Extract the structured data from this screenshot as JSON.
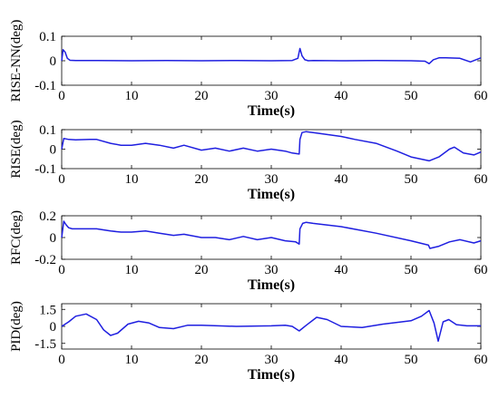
{
  "chart_data": [
    {
      "type": "line",
      "ylabel": "RISE-NN(deg)",
      "xlabel": "Time(s)",
      "xlim": [
        0,
        60
      ],
      "ylim": [
        -0.1,
        0.1
      ],
      "xticks": [
        0,
        10,
        20,
        30,
        40,
        50,
        60
      ],
      "yticks": [
        "0.1",
        "0",
        "-0.1"
      ],
      "ytick_values": [
        0.1,
        0,
        -0.1
      ],
      "grid": false,
      "line_color": "#1f1fe0",
      "series": [
        {
          "x": [
            0,
            0.2,
            0.5,
            0.8,
            1.2,
            2,
            5,
            10,
            15,
            20,
            25,
            30,
            33,
            33.8,
            34.1,
            34.4,
            34.8,
            35.3,
            36,
            40,
            45,
            50,
            52,
            52.6,
            53.2,
            54,
            55,
            57,
            58.5,
            60
          ],
          "y": [
            0.0,
            0.045,
            0.035,
            0.01,
            0.002,
            0.001,
            0.001,
            0.0,
            0.001,
            0.0,
            0.001,
            0.0,
            0.001,
            0.01,
            0.05,
            0.02,
            0.004,
            0.0,
            0.001,
            0.0,
            0.001,
            0.0,
            -0.002,
            -0.012,
            0.004,
            0.012,
            0.012,
            0.01,
            -0.005,
            0.012
          ]
        }
      ]
    },
    {
      "type": "line",
      "ylabel": "RISE(deg)",
      "xlabel": "Time(s)",
      "xlim": [
        0,
        60
      ],
      "ylim": [
        -0.1,
        0.1
      ],
      "xticks": [
        0,
        10,
        20,
        30,
        40,
        50,
        60
      ],
      "yticks": [
        "0.1",
        "0",
        "-0.1"
      ],
      "ytick_values": [
        0.1,
        0,
        -0.1
      ],
      "grid": false,
      "line_color": "#1f1fe0",
      "series": [
        {
          "x": [
            0,
            0.3,
            1,
            2,
            4,
            5,
            7,
            8.5,
            10,
            12,
            14,
            16,
            17.5,
            20,
            22,
            24,
            26,
            28,
            30,
            32,
            33,
            34,
            34.1,
            34.4,
            35,
            36,
            38,
            40,
            42,
            45,
            48,
            50,
            52.6,
            54,
            55.5,
            56.2,
            57.5,
            59,
            60
          ],
          "y": [
            0.0,
            0.055,
            0.05,
            0.048,
            0.05,
            0.05,
            0.03,
            0.02,
            0.02,
            0.03,
            0.02,
            0.005,
            0.02,
            -0.005,
            0.005,
            -0.01,
            0.005,
            -0.01,
            0.0,
            -0.01,
            -0.02,
            -0.025,
            0.05,
            0.085,
            0.09,
            0.085,
            0.075,
            0.065,
            0.05,
            0.03,
            -0.01,
            -0.04,
            -0.06,
            -0.04,
            0.0,
            0.01,
            -0.02,
            -0.03,
            -0.015
          ]
        }
      ]
    },
    {
      "type": "line",
      "ylabel": "RFC(deg)",
      "xlabel": "Time(s)",
      "xlim": [
        0,
        60
      ],
      "ylim": [
        -0.2,
        0.2
      ],
      "xticks": [
        0,
        10,
        20,
        30,
        40,
        50,
        60
      ],
      "yticks": [
        "0.2",
        "0",
        "-0.2"
      ],
      "ytick_values": [
        0.2,
        0,
        -0.2
      ],
      "grid": false,
      "line_color": "#1f1fe0",
      "series": [
        {
          "x": [
            0,
            0.3,
            0.6,
            1,
            1.5,
            3,
            5,
            7,
            8.5,
            10,
            12,
            14,
            16,
            17.5,
            20,
            22,
            24,
            26,
            28,
            30,
            32,
            33.5,
            34,
            34.1,
            34.5,
            35,
            36,
            40,
            45,
            50,
            52.5,
            52.7,
            54,
            55.5,
            57,
            59,
            60
          ],
          "y": [
            0.0,
            0.15,
            0.12,
            0.09,
            0.08,
            0.08,
            0.08,
            0.06,
            0.05,
            0.05,
            0.06,
            0.04,
            0.02,
            0.03,
            0.0,
            0.0,
            -0.02,
            0.01,
            -0.02,
            0.0,
            -0.03,
            -0.04,
            -0.06,
            0.08,
            0.13,
            0.14,
            0.13,
            0.1,
            0.04,
            -0.03,
            -0.07,
            -0.1,
            -0.08,
            -0.04,
            -0.02,
            -0.05,
            -0.03
          ]
        }
      ]
    },
    {
      "type": "line",
      "ylabel": "PID(deg)",
      "xlabel": "Time(s)",
      "xlim": [
        0,
        60
      ],
      "ylim": [
        -2,
        2
      ],
      "xticks": [
        0,
        10,
        20,
        30,
        40,
        50,
        60
      ],
      "yticks": [
        "1.5",
        "0",
        "-1.5"
      ],
      "ytick_values": [
        1.5,
        0,
        -1.5
      ],
      "grid": false,
      "line_color": "#1f1fe0",
      "series": [
        {
          "x": [
            0,
            1,
            2,
            3.5,
            5,
            6,
            7,
            8,
            9.5,
            11,
            12.5,
            14,
            16,
            18,
            20,
            25,
            30,
            32,
            33,
            34,
            35,
            36.5,
            38,
            40,
            43,
            46,
            50,
            51.5,
            52.6,
            53.3,
            53.9,
            54.6,
            55.4,
            56.5,
            58,
            60
          ],
          "y": [
            0.0,
            0.4,
            0.9,
            1.1,
            0.6,
            -0.3,
            -0.8,
            -0.6,
            0.2,
            0.45,
            0.3,
            -0.1,
            -0.2,
            0.1,
            0.1,
            0.0,
            0.05,
            0.1,
            0.0,
            -0.4,
            0.1,
            0.8,
            0.6,
            0.0,
            -0.1,
            0.2,
            0.5,
            0.9,
            1.4,
            0.3,
            -1.3,
            0.4,
            0.6,
            0.15,
            0.05,
            0.05
          ]
        }
      ]
    }
  ]
}
